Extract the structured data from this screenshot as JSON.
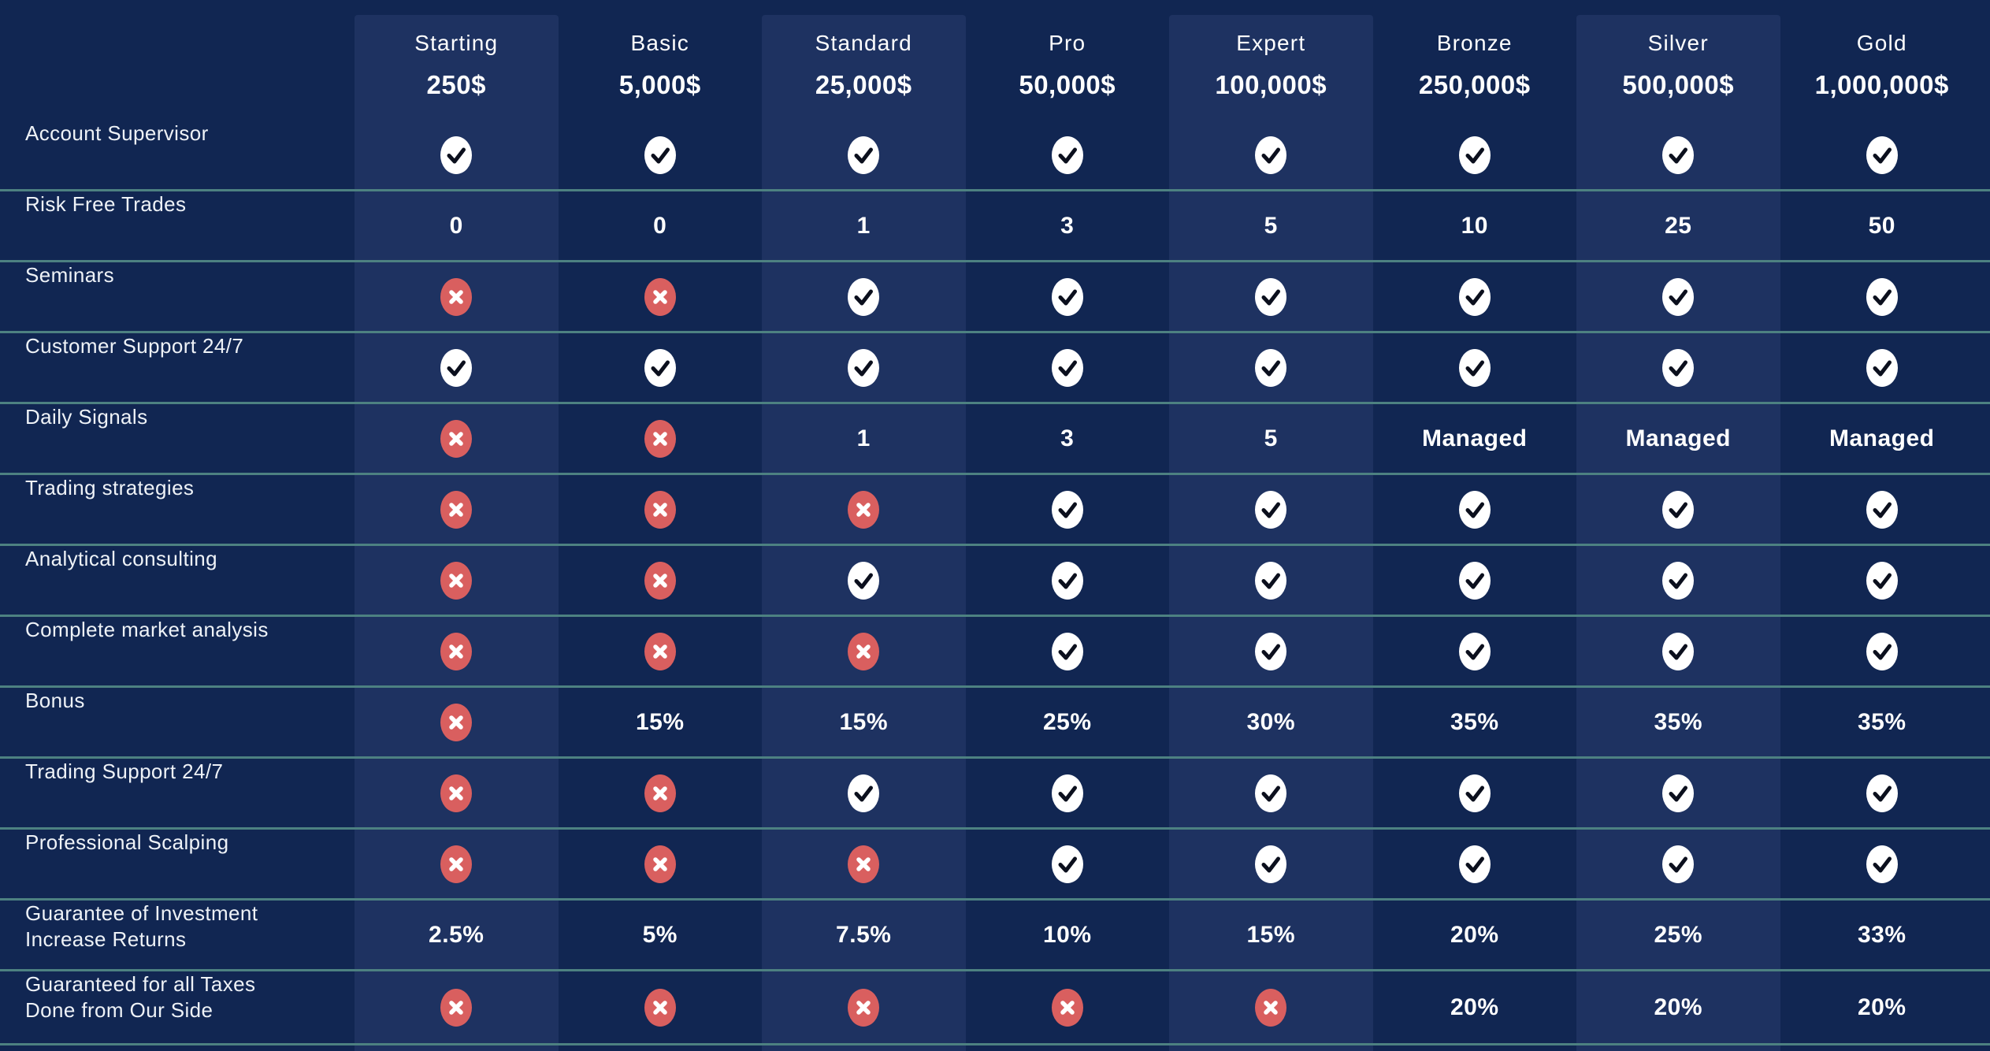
{
  "theme": {
    "background": "#112652",
    "column_highlight": "#1e3261",
    "row_divider": "#4d8181",
    "check_circle": "#ffffff",
    "check_mark": "#0b0f1d",
    "cross_circle": "#d95f5f",
    "cross_mark": "#ffffff",
    "text": "#ffffff",
    "label_text": "#eef2f7"
  },
  "icons": {
    "check": "check-icon",
    "cross": "cross-icon"
  },
  "plans": [
    {
      "name": "Starting",
      "price": "250$",
      "highlighted": true
    },
    {
      "name": "Basic",
      "price": "5,000$",
      "highlighted": false
    },
    {
      "name": "Standard",
      "price": "25,000$",
      "highlighted": true
    },
    {
      "name": "Pro",
      "price": "50,000$",
      "highlighted": false
    },
    {
      "name": "Expert",
      "price": "100,000$",
      "highlighted": true
    },
    {
      "name": "Bronze",
      "price": "250,000$",
      "highlighted": false
    },
    {
      "name": "Silver",
      "price": "500,000$",
      "highlighted": true
    },
    {
      "name": "Gold",
      "price": "1,000,000$",
      "highlighted": false
    }
  ],
  "features": [
    {
      "label_lines": [
        "Account Supervisor"
      ],
      "values": [
        "check",
        "check",
        "check",
        "check",
        "check",
        "check",
        "check",
        "check"
      ]
    },
    {
      "label_lines": [
        "Risk Free Trades"
      ],
      "values": [
        "0",
        "0",
        "1",
        "3",
        "5",
        "10",
        "25",
        "50"
      ]
    },
    {
      "label_lines": [
        "Seminars"
      ],
      "values": [
        "cross",
        "cross",
        "check",
        "check",
        "check",
        "check",
        "check",
        "check"
      ]
    },
    {
      "label_lines": [
        "Customer Support 24/7"
      ],
      "values": [
        "check",
        "check",
        "check",
        "check",
        "check",
        "check",
        "check",
        "check"
      ]
    },
    {
      "label_lines": [
        "Daily Signals"
      ],
      "values": [
        "cross",
        "cross",
        "1",
        "3",
        "5",
        "Managed",
        "Managed",
        "Managed"
      ]
    },
    {
      "label_lines": [
        "Trading strategies"
      ],
      "values": [
        "cross",
        "cross",
        "cross",
        "check",
        "check",
        "check",
        "check",
        "check"
      ]
    },
    {
      "label_lines": [
        "Analytical consulting"
      ],
      "values": [
        "cross",
        "cross",
        "check",
        "check",
        "check",
        "check",
        "check",
        "check"
      ]
    },
    {
      "label_lines": [
        "Complete market analysis"
      ],
      "values": [
        "cross",
        "cross",
        "cross",
        "check",
        "check",
        "check",
        "check",
        "check"
      ]
    },
    {
      "label_lines": [
        "Bonus"
      ],
      "values": [
        "cross",
        "15%",
        "15%",
        "25%",
        "30%",
        "35%",
        "35%",
        "35%"
      ]
    },
    {
      "label_lines": [
        "Trading Support 24/7"
      ],
      "values": [
        "cross",
        "cross",
        "check",
        "check",
        "check",
        "check",
        "check",
        "check"
      ]
    },
    {
      "label_lines": [
        "Professional Scalping"
      ],
      "values": [
        "cross",
        "cross",
        "cross",
        "check",
        "check",
        "check",
        "check",
        "check"
      ]
    },
    {
      "label_lines": [
        "Guarantee of Investment",
        "Increase Returns"
      ],
      "values": [
        "2.5%",
        "5%",
        "7.5%",
        "10%",
        "15%",
        "20%",
        "25%",
        "33%"
      ]
    },
    {
      "label_lines": [
        "Guaranteed for all Taxes",
        "Done from Our Side"
      ],
      "values": [
        "cross",
        "cross",
        "cross",
        "cross",
        "cross",
        "20%",
        "20%",
        "20%"
      ]
    }
  ]
}
